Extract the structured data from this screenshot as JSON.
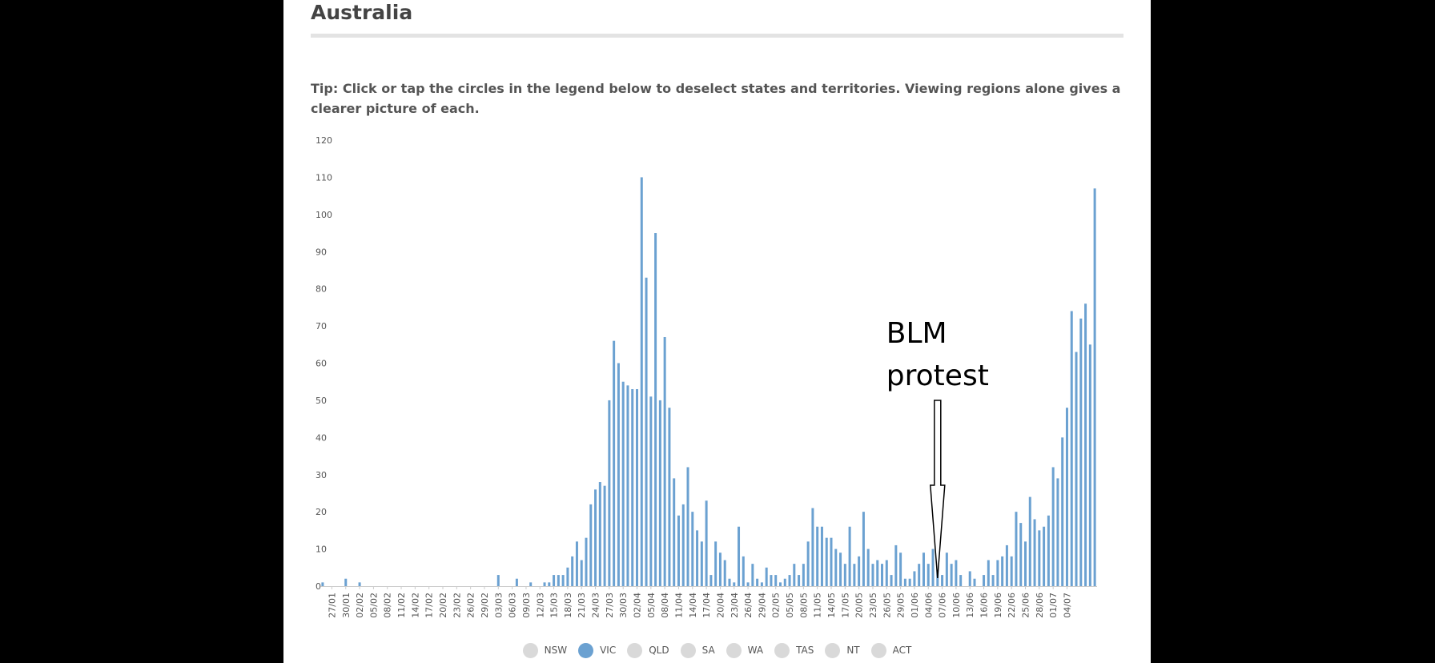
{
  "page": {
    "heading": "Australia",
    "tip": "Tip: Click or tap the circles in the legend below to deselect states and territories. Viewing regions alone gives a clearer picture of each."
  },
  "legend": {
    "items": [
      {
        "label": "NSW",
        "active": false
      },
      {
        "label": "VIC",
        "active": true
      },
      {
        "label": "QLD",
        "active": false
      },
      {
        "label": "SA",
        "active": false
      },
      {
        "label": "WA",
        "active": false
      },
      {
        "label": "TAS",
        "active": false
      },
      {
        "label": "NT",
        "active": false
      },
      {
        "label": "ACT",
        "active": false
      }
    ]
  },
  "colors": {
    "bar": "#6ba1d1",
    "legend_inactive": "#d9d9d9",
    "background": "#000000",
    "panel": "#ffffff"
  },
  "chart_data": {
    "type": "bar",
    "title": "",
    "xlabel": "",
    "ylabel": "",
    "ylim": [
      0,
      120
    ],
    "yticks": [
      0,
      10,
      20,
      30,
      40,
      50,
      60,
      70,
      80,
      90,
      100,
      110,
      120
    ],
    "grid": false,
    "start_date": "2020-01-25",
    "tick_labels": [
      "27/01",
      "30/01",
      "02/02",
      "05/02",
      "08/02",
      "11/02",
      "14/02",
      "17/02",
      "20/02",
      "23/02",
      "26/02",
      "29/02",
      "03/03",
      "06/03",
      "09/03",
      "12/03",
      "15/03",
      "18/03",
      "21/03",
      "24/03",
      "27/03",
      "30/03",
      "02/04",
      "05/04",
      "08/04",
      "11/04",
      "14/04",
      "17/04",
      "20/04",
      "23/04",
      "26/04",
      "29/04",
      "02/05",
      "05/05",
      "08/05",
      "11/05",
      "14/05",
      "17/05",
      "20/05",
      "23/05",
      "26/05",
      "29/05",
      "01/06",
      "04/06",
      "07/06",
      "10/06",
      "13/06",
      "16/06",
      "19/06",
      "22/06",
      "25/06",
      "28/06",
      "01/07",
      "04/07"
    ],
    "series": [
      {
        "name": "VIC",
        "color": "#6ba1d1",
        "values": [
          1,
          0,
          0,
          0,
          0,
          2,
          0,
          0,
          1,
          0,
          0,
          0,
          0,
          0,
          0,
          0,
          0,
          0,
          0,
          0,
          0,
          0,
          0,
          0,
          0,
          0,
          0,
          0,
          0,
          0,
          0,
          0,
          0,
          0,
          0,
          0,
          0,
          0,
          3,
          0,
          0,
          0,
          2,
          0,
          0,
          1,
          0,
          0,
          1,
          1,
          3,
          3,
          3,
          5,
          8,
          12,
          7,
          13,
          22,
          26,
          28,
          27,
          50,
          66,
          60,
          55,
          54,
          53,
          53,
          110,
          83,
          51,
          95,
          50,
          67,
          48,
          29,
          19,
          22,
          32,
          20,
          15,
          12,
          23,
          3,
          12,
          9,
          7,
          2,
          1,
          16,
          8,
          1,
          6,
          2,
          1,
          5,
          3,
          3,
          1,
          2,
          3,
          6,
          3,
          6,
          12,
          21,
          16,
          16,
          13,
          13,
          10,
          9,
          6,
          16,
          6,
          8,
          20,
          10,
          6,
          7,
          6,
          7,
          3,
          11,
          9,
          2,
          2,
          4,
          6,
          9,
          6,
          10,
          5,
          3,
          9,
          6,
          7,
          3,
          0,
          4,
          2,
          0,
          3,
          7,
          3,
          7,
          8,
          11,
          8,
          20,
          17,
          12,
          24,
          18,
          15,
          16,
          19,
          32,
          29,
          40,
          48,
          74,
          63,
          72,
          76,
          65,
          107
        ]
      }
    ],
    "annotations": [
      {
        "text_lines": [
          "BLM",
          "protest"
        ],
        "date": "06/06"
      }
    ]
  }
}
